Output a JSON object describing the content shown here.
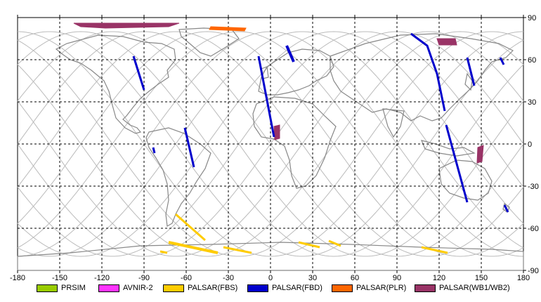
{
  "map": {
    "lon_ticks": [
      "-180",
      "-150",
      "-120",
      "-90",
      "-60",
      "-30",
      "0",
      "30",
      "60",
      "90",
      "120",
      "150",
      "180"
    ],
    "lat_ticks": [
      "90",
      "60",
      "30",
      "0",
      "-30",
      "-60",
      "-90"
    ],
    "lon_range": [
      -180,
      180
    ],
    "lat_range": [
      -90,
      90
    ],
    "grid": "dashed",
    "projection": "equirectangular"
  },
  "legend": [
    {
      "label": "PRSIM",
      "color": "#99cc00"
    },
    {
      "label": "AVNIR-2",
      "color": "#ff33ff"
    },
    {
      "label": "PALSAR(FBS)",
      "color": "#ffcc00"
    },
    {
      "label": "PALSAR(FBD)",
      "color": "#0000cc"
    },
    {
      "label": "PALSAR(PLR)",
      "color": "#ff6600"
    },
    {
      "label": "PALSAR(WB1/WB2)",
      "color": "#993366"
    }
  ]
}
